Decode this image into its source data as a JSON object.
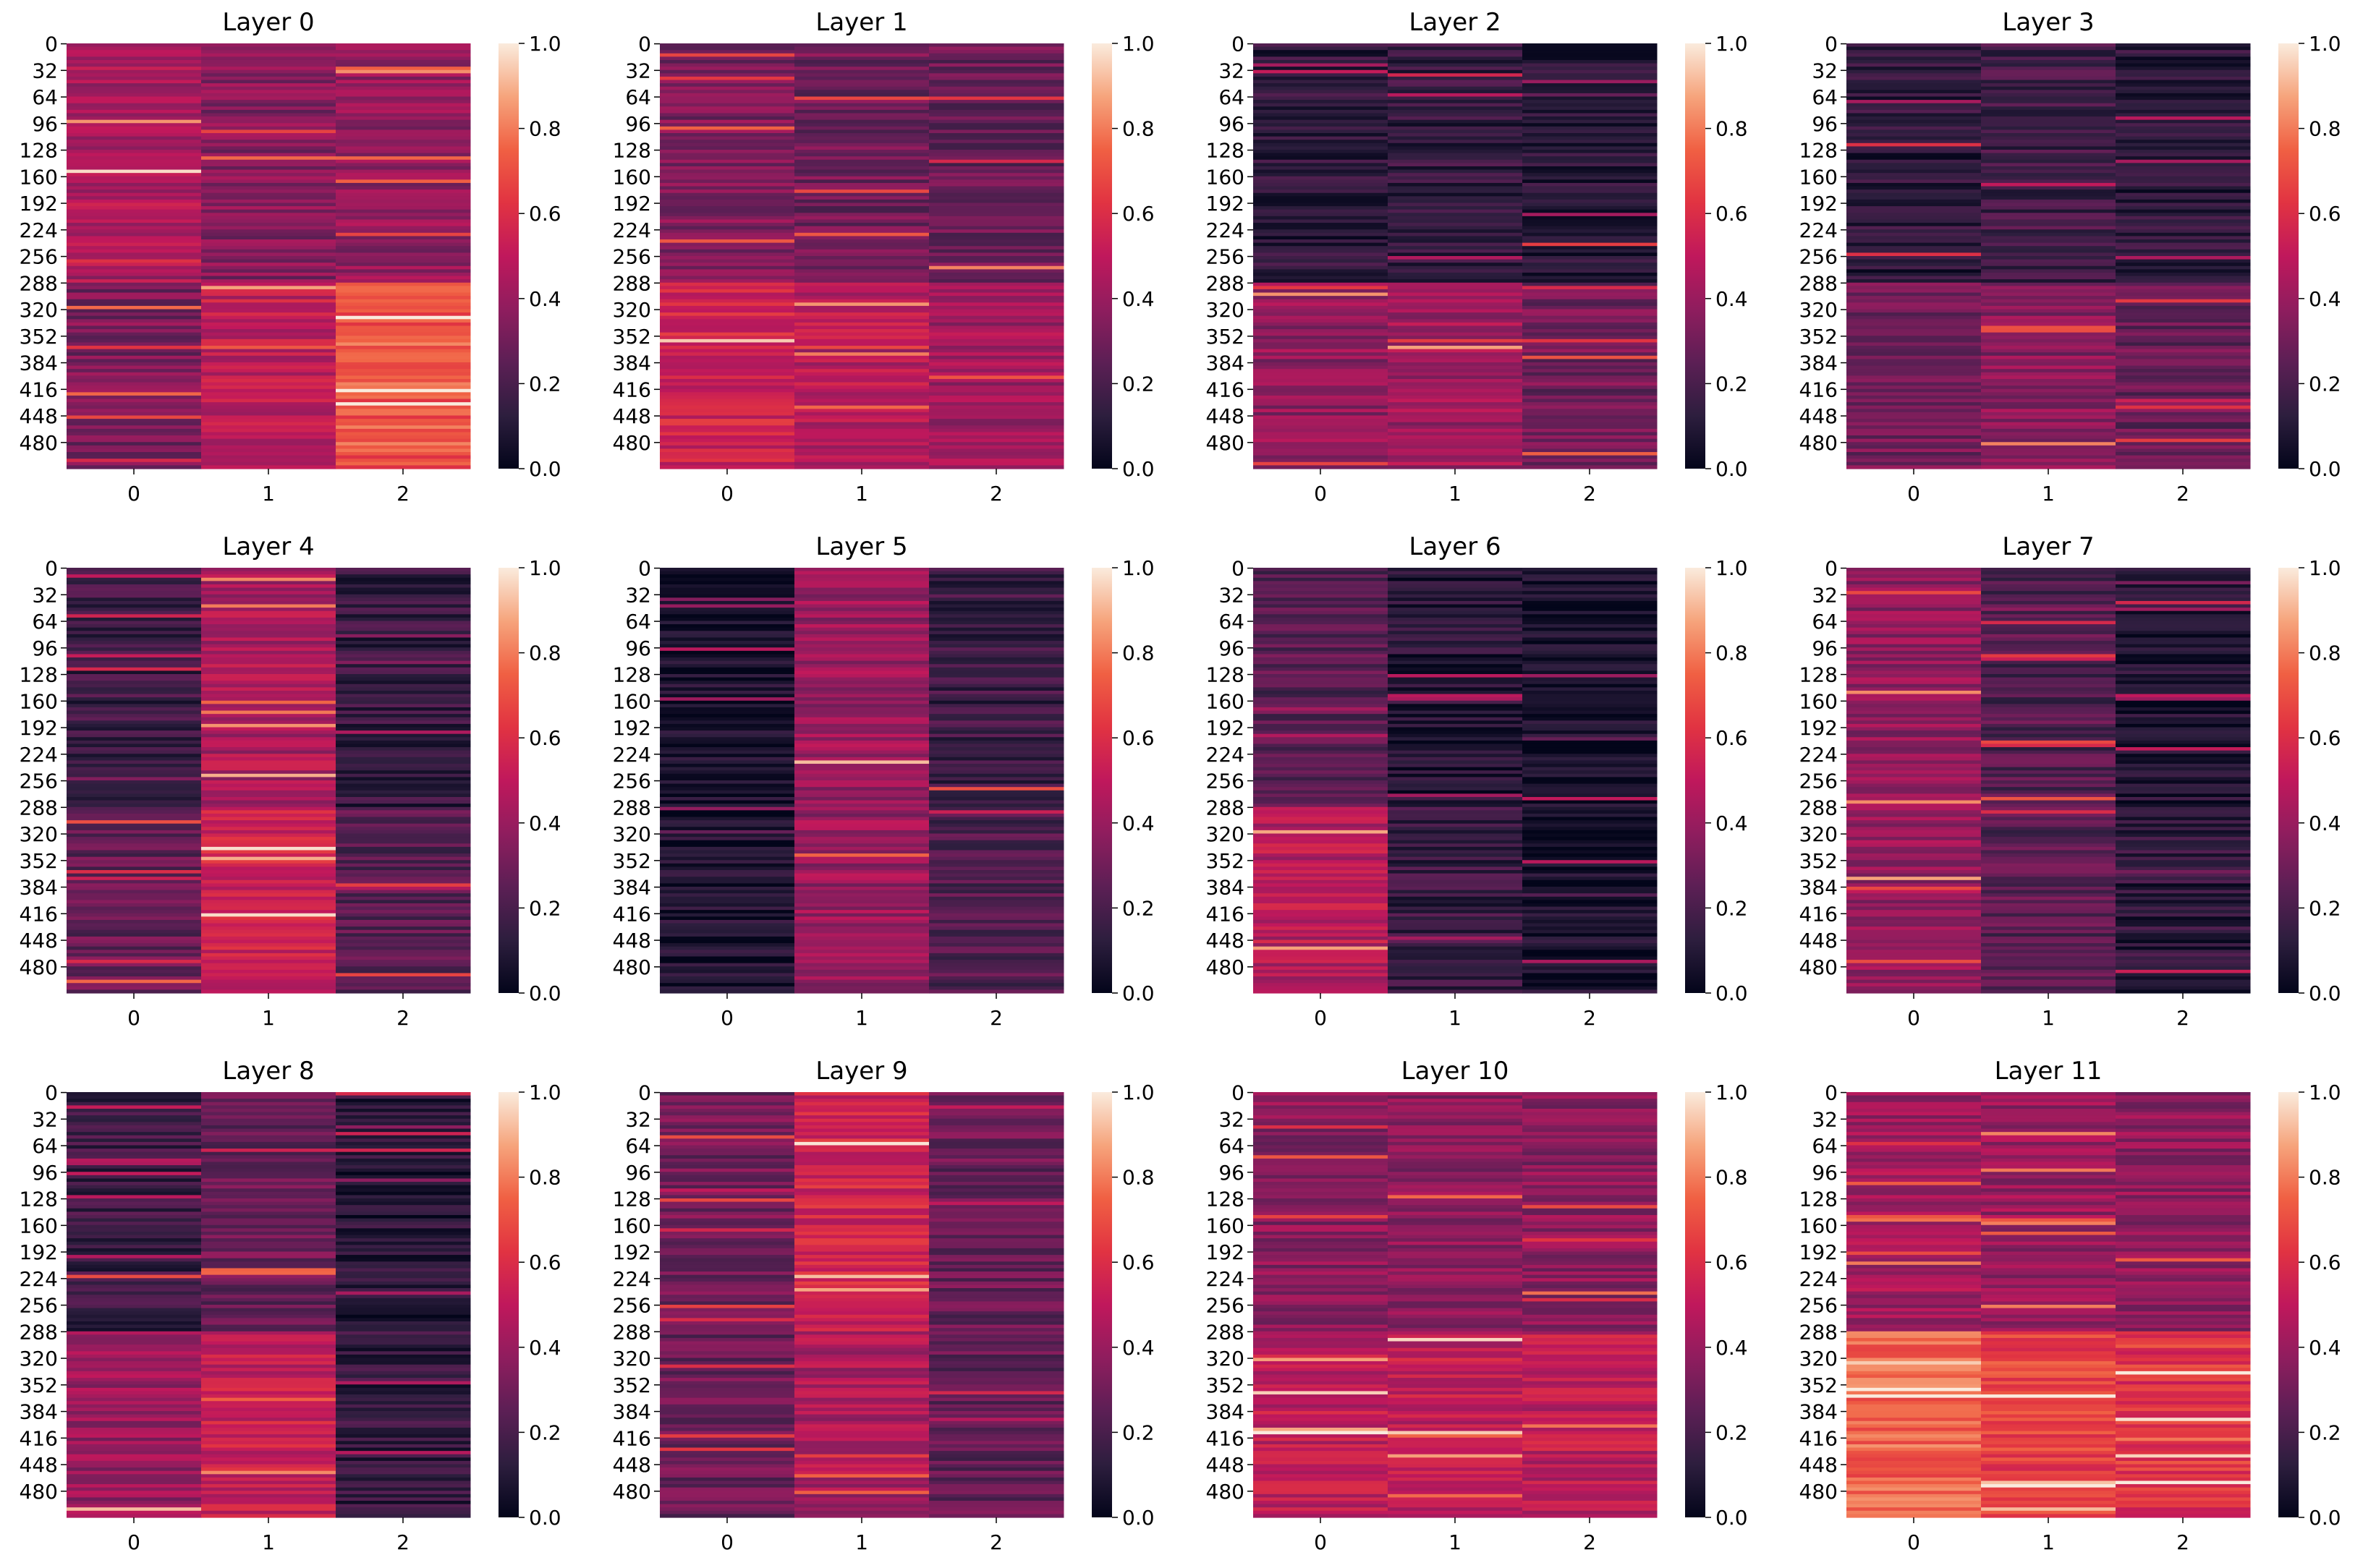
{
  "figure": {
    "type": "heatmap-grid",
    "colormap": "rocket",
    "colormap_stops": [
      "#03051a",
      "#2d1e3e",
      "#5c1f55",
      "#8f1d5e",
      "#c0185c",
      "#e13342",
      "#f06043",
      "#f6a47c",
      "#faebdd"
    ]
  },
  "chart_data": [
    {
      "type": "heatmap",
      "title": "Layer 0",
      "xticks": [
        "0",
        "1",
        "2"
      ],
      "yticks": [
        "0",
        "32",
        "64",
        "96",
        "128",
        "160",
        "192",
        "224",
        "256",
        "288",
        "320",
        "352",
        "384",
        "416",
        "448",
        "480"
      ],
      "rows": 512,
      "vmin": 0.0,
      "vmax": 1.0,
      "colorbar_ticks": [
        "0.0",
        "0.2",
        "0.4",
        "0.6",
        "0.8",
        "1.0"
      ],
      "column_means": {
        "top": [
          0.45,
          0.35,
          0.38
        ],
        "bottom": [
          0.32,
          0.5,
          0.72
        ]
      }
    },
    {
      "type": "heatmap",
      "title": "Layer 1",
      "xticks": [
        "0",
        "1",
        "2"
      ],
      "yticks": [
        "0",
        "32",
        "64",
        "96",
        "128",
        "160",
        "192",
        "224",
        "256",
        "288",
        "320",
        "352",
        "384",
        "416",
        "448",
        "480"
      ],
      "rows": 512,
      "vmin": 0.0,
      "vmax": 1.0,
      "colorbar_ticks": [
        "0.0",
        "0.2",
        "0.4",
        "0.6",
        "0.8",
        "1.0"
      ],
      "column_means": {
        "top": [
          0.33,
          0.3,
          0.28
        ],
        "bottom": [
          0.55,
          0.48,
          0.42
        ]
      }
    },
    {
      "type": "heatmap",
      "title": "Layer 2",
      "xticks": [
        "0",
        "1",
        "2"
      ],
      "yticks": [
        "0",
        "32",
        "64",
        "96",
        "128",
        "160",
        "192",
        "224",
        "256",
        "288",
        "320",
        "352",
        "384",
        "416",
        "448",
        "480"
      ],
      "rows": 512,
      "vmin": 0.0,
      "vmax": 1.0,
      "colorbar_ticks": [
        "0.0",
        "0.2",
        "0.4",
        "0.6",
        "0.8",
        "1.0"
      ],
      "column_means": {
        "top": [
          0.12,
          0.14,
          0.1
        ],
        "bottom": [
          0.38,
          0.42,
          0.3
        ]
      }
    },
    {
      "type": "heatmap",
      "title": "Layer 3",
      "xticks": [
        "0",
        "1",
        "2"
      ],
      "yticks": [
        "0",
        "32",
        "64",
        "96",
        "128",
        "160",
        "192",
        "224",
        "256",
        "288",
        "320",
        "352",
        "384",
        "416",
        "448",
        "480"
      ],
      "rows": 512,
      "vmin": 0.0,
      "vmax": 1.0,
      "colorbar_ticks": [
        "0.0",
        "0.2",
        "0.4",
        "0.6",
        "0.8",
        "1.0"
      ],
      "column_means": {
        "top": [
          0.12,
          0.18,
          0.12
        ],
        "bottom": [
          0.3,
          0.36,
          0.28
        ]
      }
    },
    {
      "type": "heatmap",
      "title": "Layer 4",
      "xticks": [
        "0",
        "1",
        "2"
      ],
      "yticks": [
        "0",
        "32",
        "64",
        "96",
        "128",
        "160",
        "192",
        "224",
        "256",
        "288",
        "320",
        "352",
        "384",
        "416",
        "448",
        "480"
      ],
      "rows": 512,
      "vmin": 0.0,
      "vmax": 1.0,
      "colorbar_ticks": [
        "0.0",
        "0.2",
        "0.4",
        "0.6",
        "0.8",
        "1.0"
      ],
      "column_means": {
        "top": [
          0.16,
          0.45,
          0.14
        ],
        "bottom": [
          0.26,
          0.55,
          0.24
        ]
      }
    },
    {
      "type": "heatmap",
      "title": "Layer 5",
      "xticks": [
        "0",
        "1",
        "2"
      ],
      "yticks": [
        "0",
        "32",
        "64",
        "96",
        "128",
        "160",
        "192",
        "224",
        "256",
        "288",
        "320",
        "352",
        "384",
        "416",
        "448",
        "480"
      ],
      "rows": 512,
      "vmin": 0.0,
      "vmax": 1.0,
      "colorbar_ticks": [
        "0.0",
        "0.2",
        "0.4",
        "0.6",
        "0.8",
        "1.0"
      ],
      "column_means": {
        "top": [
          0.06,
          0.4,
          0.16
        ],
        "bottom": [
          0.08,
          0.4,
          0.22
        ]
      }
    },
    {
      "type": "heatmap",
      "title": "Layer 6",
      "xticks": [
        "0",
        "1",
        "2"
      ],
      "yticks": [
        "0",
        "32",
        "64",
        "96",
        "128",
        "160",
        "192",
        "224",
        "256",
        "288",
        "320",
        "352",
        "384",
        "416",
        "448",
        "480"
      ],
      "rows": 512,
      "vmin": 0.0,
      "vmax": 1.0,
      "colorbar_ticks": [
        "0.0",
        "0.2",
        "0.4",
        "0.6",
        "0.8",
        "1.0"
      ],
      "column_means": {
        "top": [
          0.24,
          0.1,
          0.05
        ],
        "bottom": [
          0.48,
          0.15,
          0.06
        ]
      }
    },
    {
      "type": "heatmap",
      "title": "Layer 7",
      "xticks": [
        "0",
        "1",
        "2"
      ],
      "yticks": [
        "0",
        "32",
        "64",
        "96",
        "128",
        "160",
        "192",
        "224",
        "256",
        "288",
        "320",
        "352",
        "384",
        "416",
        "448",
        "480"
      ],
      "rows": 512,
      "vmin": 0.0,
      "vmax": 1.0,
      "colorbar_ticks": [
        "0.0",
        "0.2",
        "0.4",
        "0.6",
        "0.8",
        "1.0"
      ],
      "column_means": {
        "top": [
          0.38,
          0.22,
          0.08
        ],
        "bottom": [
          0.4,
          0.24,
          0.12
        ]
      }
    },
    {
      "type": "heatmap",
      "title": "Layer 8",
      "xticks": [
        "0",
        "1",
        "2"
      ],
      "yticks": [
        "0",
        "32",
        "64",
        "96",
        "128",
        "160",
        "192",
        "224",
        "256",
        "288",
        "320",
        "352",
        "384",
        "416",
        "448",
        "480"
      ],
      "rows": 512,
      "vmin": 0.0,
      "vmax": 1.0,
      "colorbar_ticks": [
        "0.0",
        "0.2",
        "0.4",
        "0.6",
        "0.8",
        "1.0"
      ],
      "column_means": {
        "top": [
          0.16,
          0.28,
          0.1
        ],
        "bottom": [
          0.4,
          0.52,
          0.14
        ]
      }
    },
    {
      "type": "heatmap",
      "title": "Layer 9",
      "xticks": [
        "0",
        "1",
        "2"
      ],
      "yticks": [
        "0",
        "32",
        "64",
        "96",
        "128",
        "160",
        "192",
        "224",
        "256",
        "288",
        "320",
        "352",
        "384",
        "416",
        "448",
        "480"
      ],
      "rows": 512,
      "vmin": 0.0,
      "vmax": 1.0,
      "colorbar_ticks": [
        "0.0",
        "0.2",
        "0.4",
        "0.6",
        "0.8",
        "1.0"
      ],
      "column_means": {
        "top": [
          0.3,
          0.55,
          0.28
        ],
        "bottom": [
          0.28,
          0.45,
          0.26
        ]
      }
    },
    {
      "type": "heatmap",
      "title": "Layer 10",
      "xticks": [
        "0",
        "1",
        "2"
      ],
      "yticks": [
        "0",
        "32",
        "64",
        "96",
        "128",
        "160",
        "192",
        "224",
        "256",
        "288",
        "320",
        "352",
        "384",
        "416",
        "448",
        "480"
      ],
      "rows": 512,
      "vmin": 0.0,
      "vmax": 1.0,
      "colorbar_ticks": [
        "0.0",
        "0.2",
        "0.4",
        "0.6",
        "0.8",
        "1.0"
      ],
      "column_means": {
        "top": [
          0.36,
          0.36,
          0.36
        ],
        "bottom": [
          0.5,
          0.5,
          0.5
        ]
      }
    },
    {
      "type": "heatmap",
      "title": "Layer 11",
      "xticks": [
        "0",
        "1",
        "2"
      ],
      "yticks": [
        "0",
        "32",
        "64",
        "96",
        "128",
        "160",
        "192",
        "224",
        "256",
        "288",
        "320",
        "352",
        "384",
        "416",
        "448",
        "480"
      ],
      "rows": 512,
      "vmin": 0.0,
      "vmax": 1.0,
      "colorbar_ticks": [
        "0.0",
        "0.2",
        "0.4",
        "0.6",
        "0.8",
        "1.0"
      ],
      "column_means": {
        "top": [
          0.42,
          0.4,
          0.38
        ],
        "bottom": [
          0.75,
          0.66,
          0.62
        ]
      }
    }
  ]
}
